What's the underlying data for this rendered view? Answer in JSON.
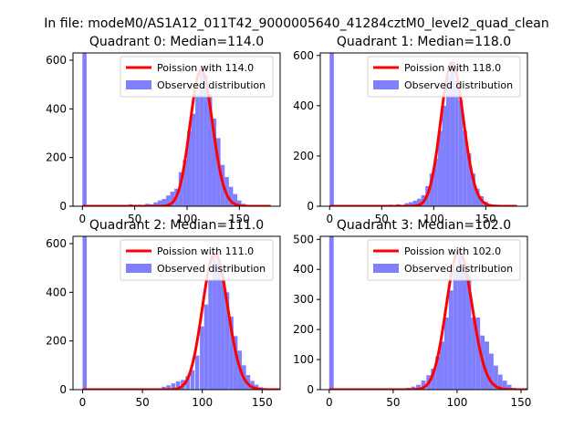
{
  "suptitle": "In file: modeM0/AS1A12_011T42_9000005640_41284cztM0_level2_quad_clean",
  "legend": {
    "poisson_prefix": "Poission with ",
    "observed": "Observed distribution"
  },
  "colors": {
    "bar": "#8080ff",
    "line": "#ff0000"
  },
  "chart_data": [
    {
      "type": "bar",
      "title": "Quadrant 0: Median=114.0",
      "median": 114.0,
      "poisson_label": "Poission with 114.0",
      "xlim": [
        -9,
        189
      ],
      "ylim": [
        0,
        630
      ],
      "xticks": [
        0,
        50,
        100,
        150
      ],
      "yticks": [
        0,
        200,
        400,
        600
      ],
      "bin_width": 4,
      "zero_bar": 630,
      "bins": [
        [
          44,
          8
        ],
        [
          52,
          6
        ],
        [
          60,
          10
        ],
        [
          64,
          8
        ],
        [
          68,
          16
        ],
        [
          72,
          24
        ],
        [
          76,
          30
        ],
        [
          80,
          44
        ],
        [
          84,
          60
        ],
        [
          88,
          72
        ],
        [
          92,
          140
        ],
        [
          96,
          190
        ],
        [
          100,
          310
        ],
        [
          104,
          380
        ],
        [
          108,
          460
        ],
        [
          112,
          560
        ],
        [
          116,
          540
        ],
        [
          120,
          460
        ],
        [
          124,
          360
        ],
        [
          128,
          280
        ],
        [
          132,
          170
        ],
        [
          136,
          120
        ],
        [
          140,
          80
        ],
        [
          144,
          50
        ],
        [
          148,
          24
        ],
        [
          152,
          10
        ],
        [
          156,
          4
        ]
      ]
    },
    {
      "type": "bar",
      "title": "Quadrant 1: Median=118.0",
      "median": 118.0,
      "poisson_label": "Poission with 118.0",
      "xlim": [
        -9,
        190
      ],
      "ylim": [
        0,
        610
      ],
      "xticks": [
        0,
        50,
        100,
        150
      ],
      "yticks": [
        0,
        200,
        400,
        600
      ],
      "bin_width": 4,
      "zero_bar": 610,
      "bins": [
        [
          48,
          4
        ],
        [
          56,
          6
        ],
        [
          64,
          8
        ],
        [
          72,
          12
        ],
        [
          76,
          16
        ],
        [
          80,
          22
        ],
        [
          84,
          30
        ],
        [
          88,
          44
        ],
        [
          92,
          80
        ],
        [
          96,
          130
        ],
        [
          100,
          190
        ],
        [
          104,
          300
        ],
        [
          108,
          400
        ],
        [
          112,
          520
        ],
        [
          116,
          570
        ],
        [
          120,
          500
        ],
        [
          124,
          420
        ],
        [
          128,
          300
        ],
        [
          132,
          210
        ],
        [
          136,
          130
        ],
        [
          140,
          70
        ],
        [
          144,
          40
        ],
        [
          148,
          18
        ],
        [
          152,
          8
        ]
      ]
    },
    {
      "type": "bar",
      "title": "Quadrant 2: Median=111.0",
      "median": 111.0,
      "poisson_label": "Poission with 111.0",
      "xlim": [
        -8,
        165
      ],
      "ylim": [
        0,
        630
      ],
      "xticks": [
        0,
        50,
        100,
        150
      ],
      "yticks": [
        0,
        200,
        400,
        600
      ],
      "bin_width": 3.5,
      "zero_bar": 630,
      "bins": [
        [
          60,
          6
        ],
        [
          66,
          12
        ],
        [
          70,
          18
        ],
        [
          74,
          26
        ],
        [
          78,
          34
        ],
        [
          82,
          40
        ],
        [
          86,
          56
        ],
        [
          90,
          80
        ],
        [
          94,
          140
        ],
        [
          98,
          260
        ],
        [
          101.5,
          350
        ],
        [
          105,
          450
        ],
        [
          108.5,
          560
        ],
        [
          112,
          520
        ],
        [
          115.5,
          450
        ],
        [
          119,
          400
        ],
        [
          122.5,
          300
        ],
        [
          126,
          220
        ],
        [
          129.5,
          160
        ],
        [
          133,
          100
        ],
        [
          136.5,
          60
        ],
        [
          140,
          36
        ],
        [
          143.5,
          20
        ],
        [
          147,
          10
        ],
        [
          150.5,
          4
        ]
      ]
    },
    {
      "type": "bar",
      "title": "Quadrant 3: Median=102.0",
      "median": 102.0,
      "poisson_label": "Poission with 102.0",
      "xlim": [
        -7,
        155
      ],
      "ylim": [
        0,
        510
      ],
      "xticks": [
        0,
        50,
        100,
        150
      ],
      "yticks": [
        0,
        100,
        200,
        300,
        400,
        500
      ],
      "bin_width": 3.5,
      "zero_bar": 510,
      "bins": [
        [
          60,
          6
        ],
        [
          64,
          10
        ],
        [
          68,
          16
        ],
        [
          72,
          30
        ],
        [
          76,
          48
        ],
        [
          79.5,
          70
        ],
        [
          83,
          110
        ],
        [
          86.5,
          160
        ],
        [
          90,
          240
        ],
        [
          93.5,
          330
        ],
        [
          97,
          400
        ],
        [
          100.5,
          460
        ],
        [
          104,
          400
        ],
        [
          107.5,
          380
        ],
        [
          111,
          240
        ],
        [
          114.5,
          240
        ],
        [
          118,
          180
        ],
        [
          121.5,
          160
        ],
        [
          125,
          120
        ],
        [
          128.5,
          80
        ],
        [
          132,
          50
        ],
        [
          135.5,
          30
        ],
        [
          139,
          16
        ],
        [
          142.5,
          6
        ]
      ]
    }
  ]
}
